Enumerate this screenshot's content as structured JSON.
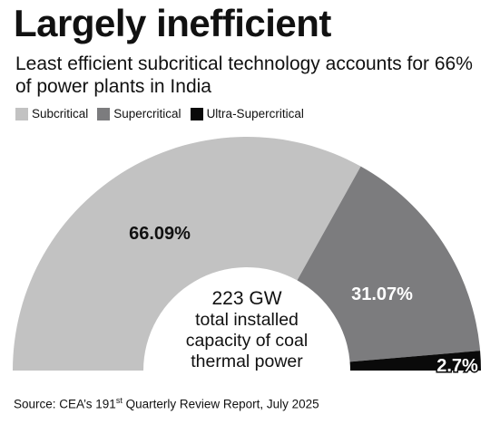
{
  "title": "Largely inefficient",
  "subtitle": "Least efficient subcritical technology accounts for 66% of power plants in India",
  "chart_data": {
    "type": "pie",
    "variant": "half-donut",
    "series": [
      {
        "name": "Subcritical",
        "value": 66.09,
        "label": "66.09%",
        "color": "#c2c2c2"
      },
      {
        "name": "Supercritical",
        "value": 31.07,
        "label": "31.07%",
        "color": "#7c7c7e"
      },
      {
        "name": "Ultra-Supercritical",
        "value": 2.7,
        "label": "2.7%",
        "color": "#0a0a0a"
      }
    ],
    "center_text": [
      "223 GW",
      "total installed",
      "capacity of coal",
      "thermal power"
    ],
    "legend_position": "top-left"
  },
  "source": {
    "prefix": "Source: CEA’s 191",
    "superscript": "st",
    "suffix": " Quarterly Review Report, July 2025"
  }
}
